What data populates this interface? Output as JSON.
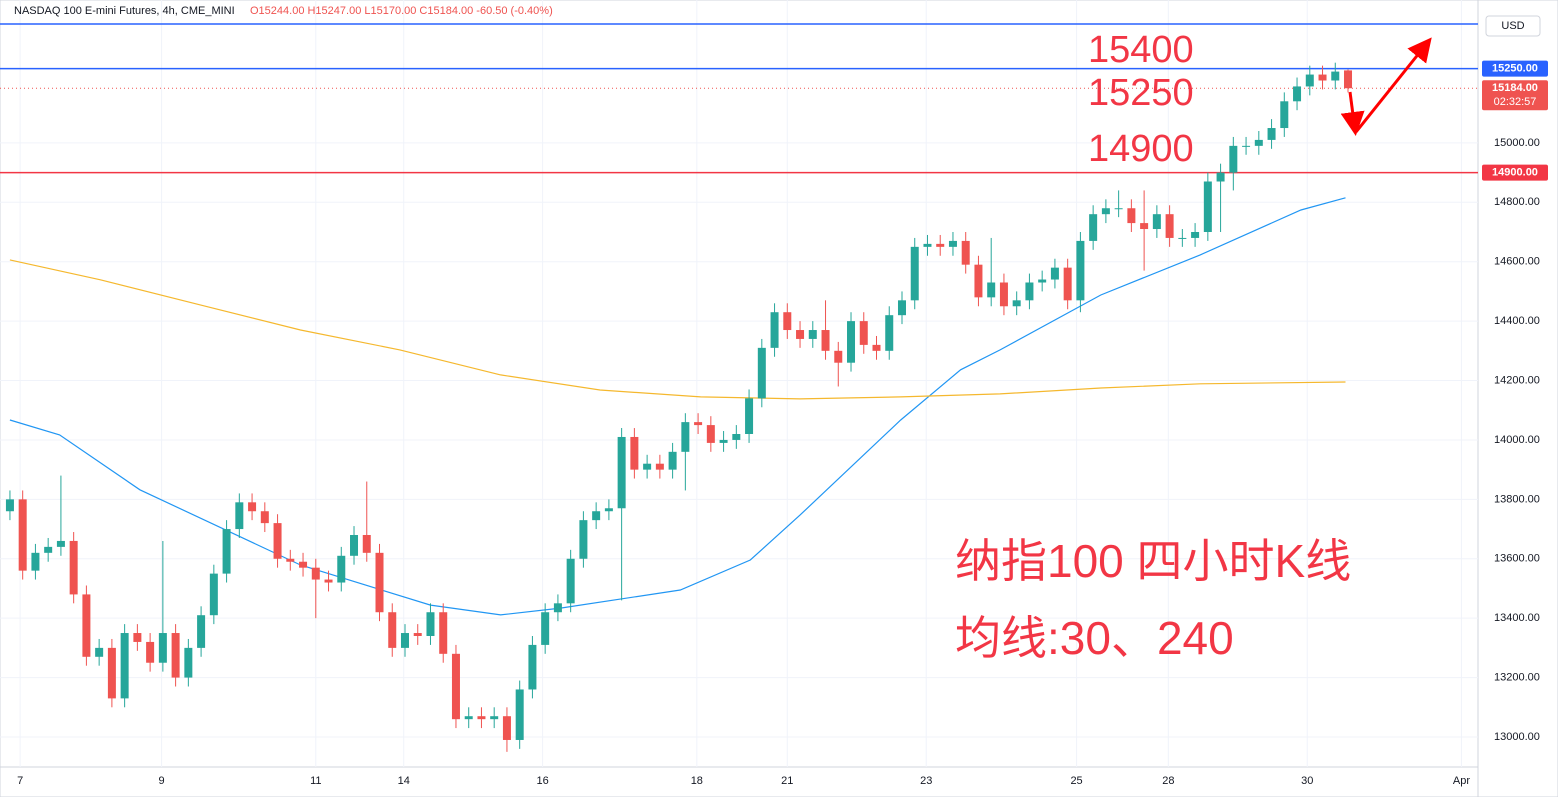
{
  "chart_data": {
    "type": "candlestick",
    "title": "NASDAQ 100 E-mini Futures, 4h, CME_MINI",
    "ohlc_text": "O15244.00 H15247.00 L15170.00 C15184.00 -60.50 (-0.40%)",
    "currency": "USD",
    "countdown": "02:32:57",
    "up_color": "#26a69a",
    "down_color": "#ef5350",
    "xlim": [
      -0.78,
      115.2
    ],
    "xticks": [
      {
        "value": 0.8,
        "label": "7"
      },
      {
        "value": 11.9,
        "label": "9"
      },
      {
        "value": 24,
        "label": "11"
      },
      {
        "value": 30.9,
        "label": "14"
      },
      {
        "value": 41.8,
        "label": "16"
      },
      {
        "value": 53.9,
        "label": "18"
      },
      {
        "value": 61,
        "label": "21"
      },
      {
        "value": 71.9,
        "label": "23"
      },
      {
        "value": 83.7,
        "label": "25"
      },
      {
        "value": 90.9,
        "label": "28"
      },
      {
        "value": 101.8,
        "label": "30"
      },
      {
        "value": 113.9,
        "label": "Apr"
      }
    ],
    "ylim": [
      12899,
      15481
    ],
    "yticks": [
      {
        "value": 13000,
        "label": "13000.00"
      },
      {
        "value": 13200,
        "label": "13200.00"
      },
      {
        "value": 13400,
        "label": "13400.00"
      },
      {
        "value": 13600,
        "label": "13600.00"
      },
      {
        "value": 13800,
        "label": "13800.00"
      },
      {
        "value": 14000,
        "label": "14000.00"
      },
      {
        "value": 14200,
        "label": "14200.00"
      },
      {
        "value": 14400,
        "label": "14400.00"
      },
      {
        "value": 14600,
        "label": "14600.00"
      },
      {
        "value": 14800,
        "label": "14800.00"
      },
      {
        "value": 15000,
        "label": "15000.00"
      }
    ],
    "grid": true,
    "open": [
      13760,
      13800,
      13560,
      13620,
      13640,
      13660,
      13480,
      13270,
      13300,
      13130,
      13350,
      13320,
      13250,
      13350,
      13200,
      13300,
      13410,
      13550,
      13700,
      13790,
      13760,
      13720,
      13600,
      13590,
      13570,
      13530,
      13520,
      13610,
      13680,
      13620,
      13420,
      13300,
      13350,
      13340,
      13420,
      13280,
      13060,
      13070,
      13060,
      13070,
      12990,
      13160,
      13310,
      13420,
      13450,
      13600,
      13730,
      13760,
      13770,
      14010,
      13900,
      13920,
      13900,
      13960,
      14060,
      14050,
      13990,
      14000,
      14020,
      14140,
      14310,
      14430,
      14370,
      14340,
      14370,
      14300,
      14260,
      14400,
      14320,
      14300,
      14420,
      14470,
      14650,
      14660,
      14650,
      14670,
      14590,
      14480,
      14530,
      14450,
      14470,
      14530,
      14540,
      14580,
      14470,
      14670,
      14760,
      14780,
      14780,
      14730,
      14710,
      14760,
      14680,
      14680,
      14700,
      14870,
      14900,
      14990,
      14990,
      15010,
      15050,
      15140,
      15190,
      15230,
      15210,
      15244
    ],
    "high": [
      13830,
      13830,
      13650,
      13670,
      13880,
      13690,
      13510,
      13330,
      13330,
      13380,
      13380,
      13350,
      13660,
      13380,
      13330,
      13440,
      13580,
      13730,
      13820,
      13820,
      13790,
      13750,
      13630,
      13620,
      13600,
      13560,
      13640,
      13710,
      13860,
      13650,
      13450,
      13380,
      13380,
      13450,
      13450,
      13310,
      13100,
      13100,
      13100,
      13100,
      13190,
      13340,
      13450,
      13480,
      13630,
      13760,
      13790,
      13800,
      14040,
      14040,
      13950,
      13950,
      13990,
      14090,
      14090,
      14080,
      14030,
      14050,
      14170,
      14340,
      14460,
      14460,
      14400,
      14400,
      14470,
      14330,
      14430,
      14430,
      14350,
      14450,
      14500,
      14680,
      14690,
      14690,
      14700,
      14700,
      14620,
      14680,
      14560,
      14500,
      14560,
      14570,
      14610,
      14610,
      14700,
      14790,
      14810,
      14840,
      14810,
      14840,
      14790,
      14790,
      14710,
      14730,
      14900,
      14930,
      15020,
      15020,
      15040,
      15080,
      15170,
      15220,
      15260,
      15260,
      15270,
      15247
    ],
    "low": [
      13730,
      13530,
      13530,
      13590,
      13610,
      13450,
      13240,
      13240,
      13100,
      13100,
      13290,
      13220,
      13220,
      13170,
      13170,
      13270,
      13380,
      13520,
      13670,
      13730,
      13690,
      13570,
      13560,
      13540,
      13400,
      13490,
      13490,
      13580,
      13590,
      13390,
      13270,
      13270,
      13310,
      13310,
      13250,
      13030,
      13030,
      13030,
      13030,
      12950,
      12960,
      13130,
      13280,
      13390,
      13420,
      13570,
      13700,
      13730,
      13460,
      13870,
      13870,
      13870,
      13870,
      13830,
      14020,
      13960,
      13960,
      13970,
      13990,
      14110,
      14280,
      14340,
      14310,
      14310,
      14270,
      14180,
      14230,
      14290,
      14270,
      14270,
      14390,
      14440,
      14620,
      14620,
      14620,
      14560,
      14450,
      14450,
      14420,
      14420,
      14440,
      14500,
      14510,
      14440,
      14430,
      14640,
      14730,
      14750,
      14700,
      14570,
      14680,
      14650,
      14650,
      14650,
      14670,
      14700,
      14840,
      14960,
      14960,
      14980,
      15020,
      15110,
      15160,
      15180,
      15180,
      15170
    ],
    "close": [
      13800,
      13560,
      13620,
      13640,
      13660,
      13480,
      13270,
      13300,
      13130,
      13350,
      13320,
      13250,
      13350,
      13200,
      13300,
      13410,
      13550,
      13700,
      13790,
      13760,
      13720,
      13600,
      13590,
      13570,
      13530,
      13520,
      13610,
      13680,
      13620,
      13420,
      13300,
      13350,
      13340,
      13420,
      13280,
      13060,
      13070,
      13060,
      13070,
      12990,
      13160,
      13310,
      13420,
      13450,
      13600,
      13730,
      13760,
      13770,
      14010,
      13900,
      13920,
      13900,
      13960,
      14060,
      14050,
      13990,
      14000,
      14020,
      14140,
      14310,
      14430,
      14370,
      14340,
      14370,
      14300,
      14260,
      14400,
      14320,
      14300,
      14420,
      14470,
      14650,
      14660,
      14650,
      14670,
      14590,
      14480,
      14530,
      14450,
      14470,
      14530,
      14540,
      14580,
      14470,
      14670,
      14760,
      14780,
      14780,
      14730,
      14710,
      14760,
      14680,
      14680,
      14700,
      14870,
      14900,
      14990,
      14990,
      15010,
      15050,
      15140,
      15190,
      15230,
      15210,
      15240,
      15184
    ],
    "series": [
      {
        "color": "#2196f3",
        "x": [
          0,
          3.9,
          10.2,
          22.8,
          33,
          38.5,
          43.2,
          52.6,
          58.1,
          62,
          69.9,
          74.6,
          77.7,
          85.6,
          93.4,
          101.3,
          104.8
        ],
        "values": [
          14067,
          14017,
          13832,
          13579,
          13444,
          13411,
          13434,
          13495,
          13596,
          13747,
          14067,
          14236,
          14303,
          14488,
          14623,
          14774,
          14815
        ]
      },
      {
        "color": "#f5b82e",
        "x": [
          0,
          7.1,
          14.9,
          22.8,
          30.6,
          38.5,
          46.3,
          54.2,
          62,
          69.9,
          77.7,
          85.6,
          93.4,
          104.8
        ],
        "values": [
          14606,
          14539,
          14455,
          14370,
          14303,
          14219,
          14168,
          14145,
          14138,
          14145,
          14155,
          14175,
          14189,
          14195
        ]
      }
    ],
    "levels": [
      {
        "value": 15400,
        "color": "#2962ff",
        "style": "solid"
      },
      {
        "value": 15250,
        "color": "#2962ff",
        "style": "solid",
        "label": "15250.00"
      },
      {
        "value": 15184,
        "color": "#ef5350",
        "style": "dotted",
        "label": "15184.00"
      },
      {
        "value": 14900,
        "color": "#f23645",
        "style": "solid",
        "label": "14900.00"
      }
    ],
    "annotations": [
      "15400",
      "15250",
      "14900",
      "纳指100 四小时K线",
      "均线:30、240"
    ]
  }
}
